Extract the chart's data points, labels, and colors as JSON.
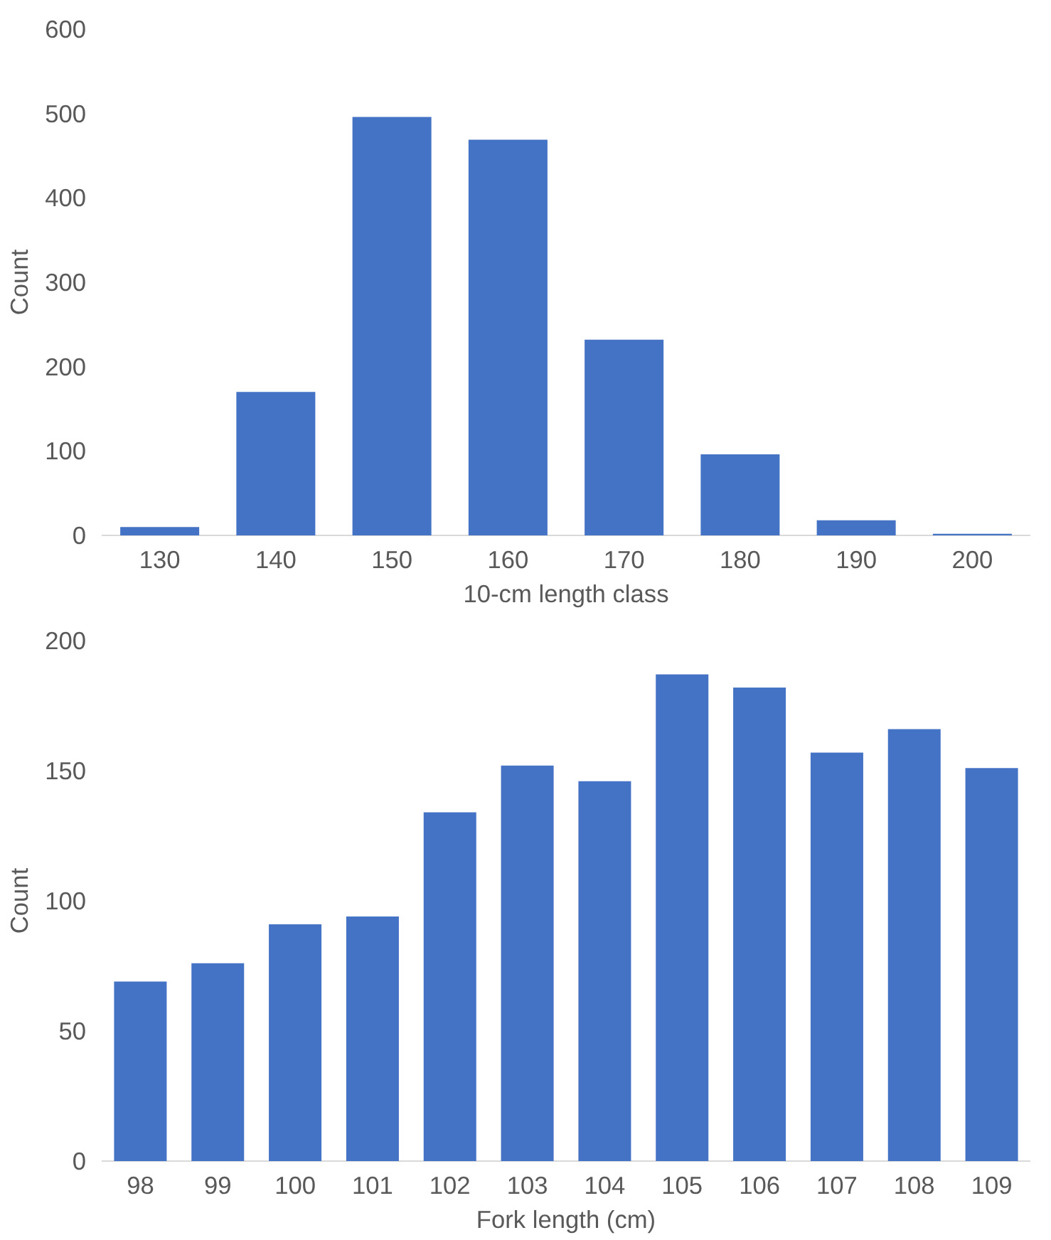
{
  "chart_data": [
    {
      "type": "bar",
      "xlabel": "10-cm length class",
      "ylabel": "Count",
      "categories": [
        "130",
        "140",
        "150",
        "160",
        "170",
        "180",
        "190",
        "200"
      ],
      "values": [
        10,
        170,
        496,
        469,
        232,
        96,
        18,
        2
      ],
      "color": "#4472c4",
      "ylim": [
        0,
        600
      ],
      "yticks": [
        0,
        100,
        200,
        300,
        400,
        500,
        600
      ],
      "grid": false
    },
    {
      "type": "bar",
      "xlabel": "Fork length (cm)",
      "ylabel": "Count",
      "categories": [
        "98",
        "99",
        "100",
        "101",
        "102",
        "103",
        "104",
        "105",
        "106",
        "107",
        "108",
        "109"
      ],
      "values": [
        69,
        76,
        91,
        94,
        134,
        152,
        146,
        187,
        182,
        157,
        166,
        151
      ],
      "color": "#4472c4",
      "ylim": [
        0,
        200
      ],
      "yticks": [
        0,
        50,
        100,
        150,
        200
      ],
      "grid": false
    }
  ]
}
